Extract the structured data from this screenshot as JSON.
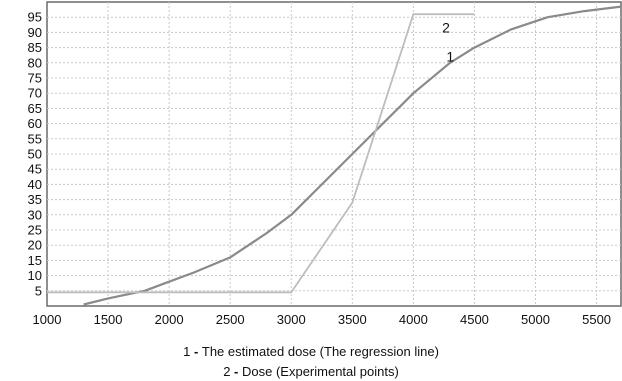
{
  "chart_data": {
    "type": "line",
    "xlim": [
      1000,
      5700
    ],
    "ylim": [
      0,
      100
    ],
    "x_ticks": [
      1000,
      1500,
      2000,
      2500,
      3000,
      3500,
      4000,
      4500,
      5000,
      5500
    ],
    "y_ticks": [
      5,
      10,
      15,
      20,
      25,
      30,
      35,
      40,
      45,
      50,
      55,
      60,
      65,
      70,
      75,
      80,
      85,
      90,
      95
    ],
    "grid": true,
    "series": [
      {
        "label": "1",
        "color": "#8a8a8a",
        "x": [
          1300,
          1500,
          1800,
          2000,
          2200,
          2500,
          2800,
          3000,
          3200,
          3500,
          3800,
          4000,
          4300,
          4500,
          4800,
          5100,
          5400,
          5700
        ],
        "y": [
          0.5,
          2.5,
          5,
          8,
          11,
          16,
          24,
          30,
          38,
          50,
          62,
          70,
          80,
          85,
          91,
          95,
          97,
          98.5
        ]
      },
      {
        "label": "2",
        "color": "#bdbdbd",
        "x": [
          1000,
          3000,
          3500,
          4000,
          4500
        ],
        "y": [
          4.5,
          4.5,
          34,
          96,
          96
        ]
      }
    ],
    "legend": [
      {
        "num": "1",
        "sep": " - ",
        "text": "The estimated dose (The regression line)"
      },
      {
        "num": "2",
        "sep": " - ",
        "text": "Dose (Experimental points)"
      }
    ]
  }
}
